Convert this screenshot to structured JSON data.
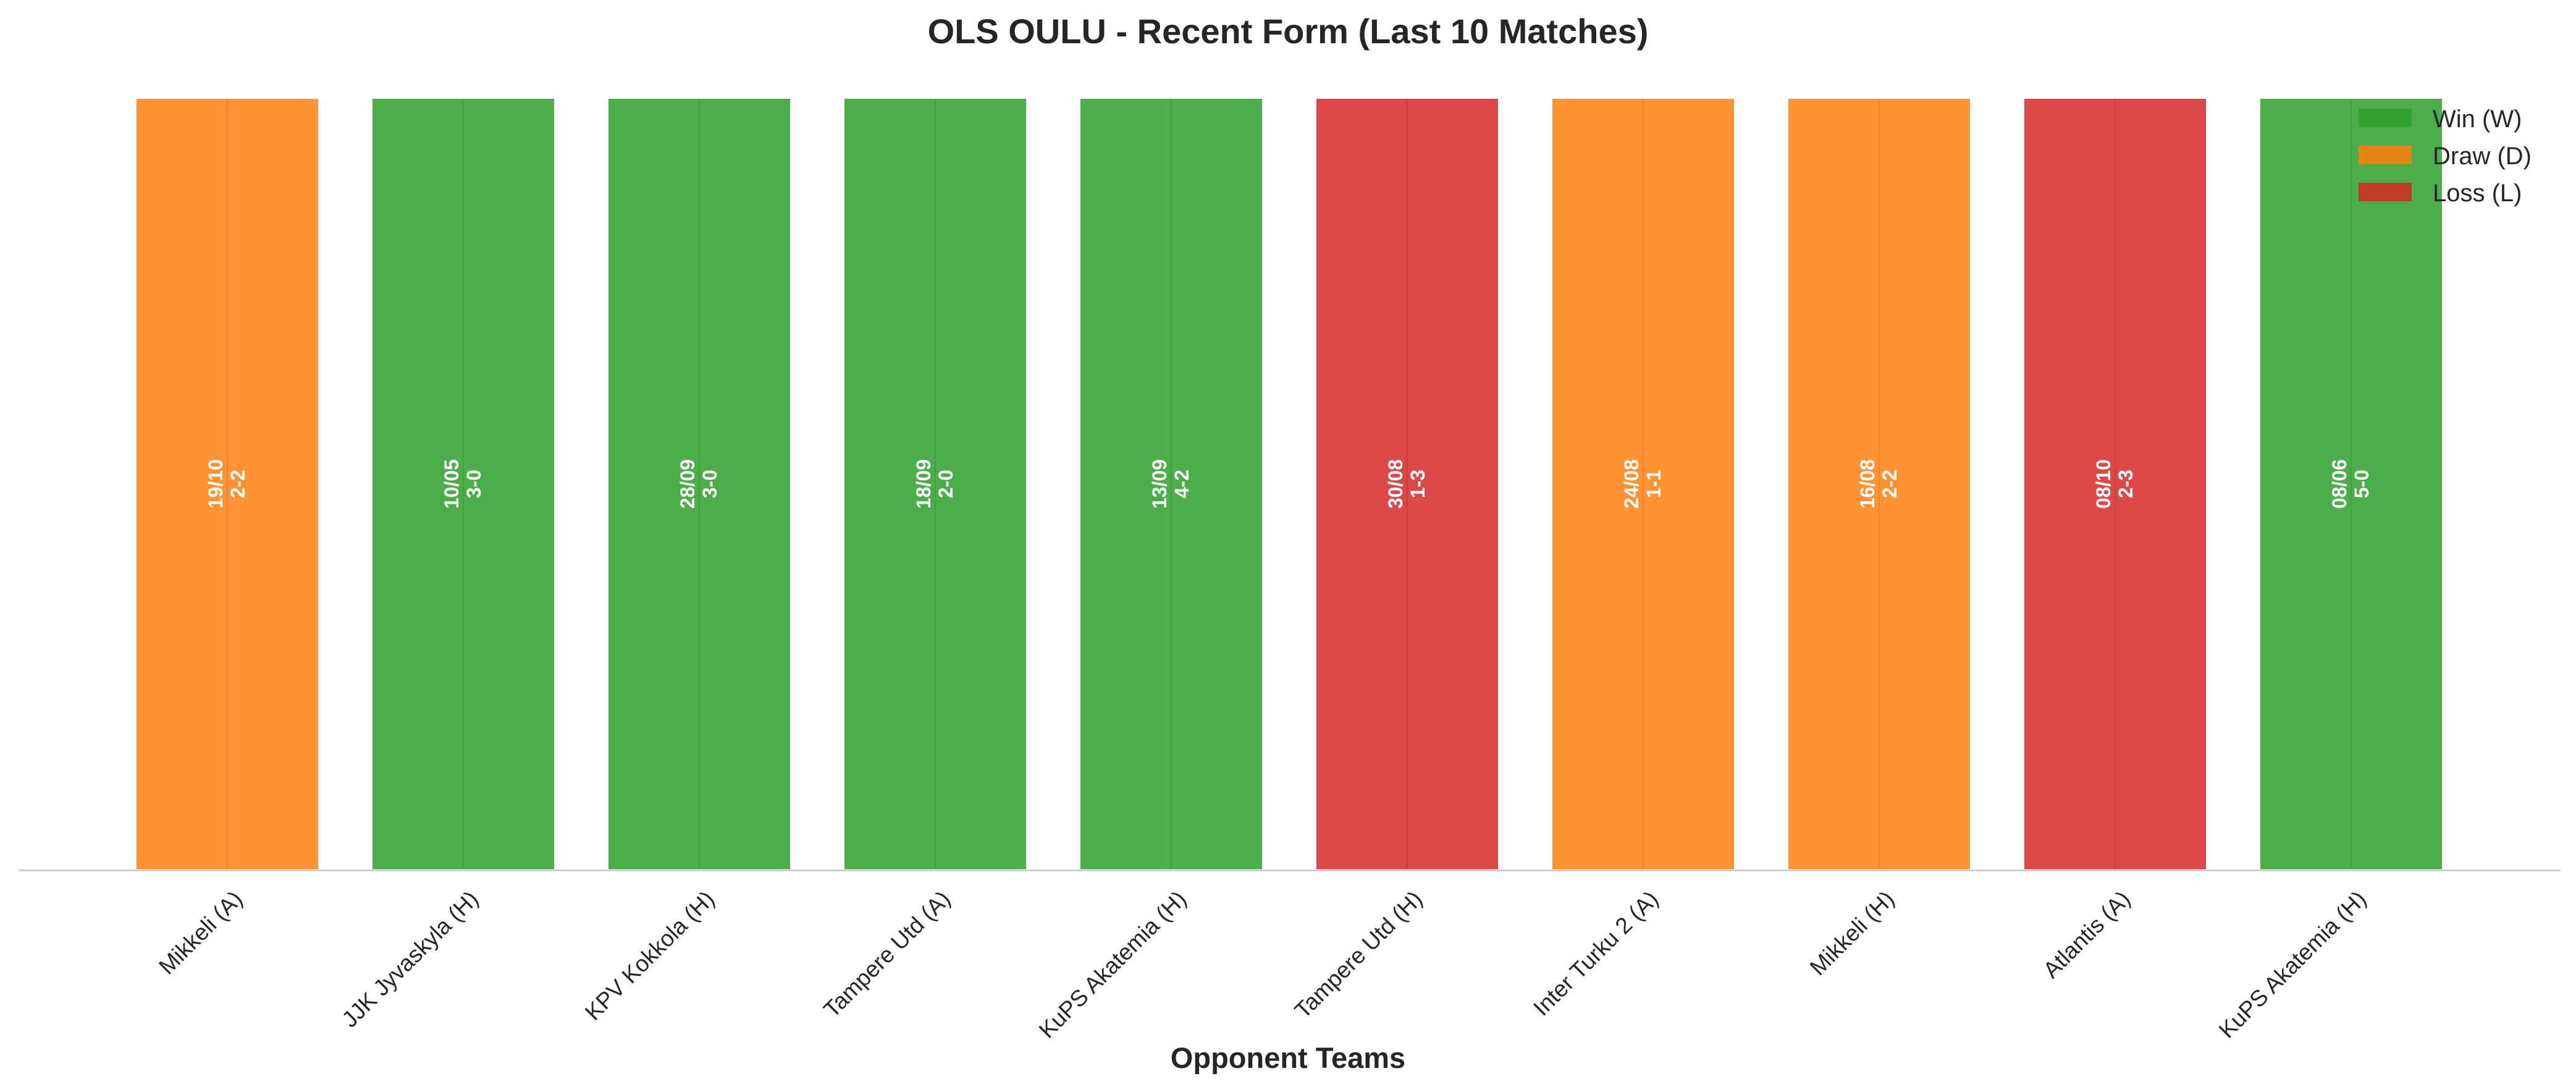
{
  "chart_data": {
    "type": "bar",
    "title": "OLS OULU - Recent Form (Last 10 Matches)",
    "xlabel": "Opponent Teams",
    "ylabel": "",
    "ylim": [
      0,
      1
    ],
    "grid": false,
    "legend_position": "top-right",
    "categories": [
      "Mikkeli (A)",
      "JJK Jyvaskyla (H)",
      "KPV Kokkola (H)",
      "Tampere Utd (A)",
      "KuPS Akatemia (H)",
      "Tampere Utd (H)",
      "Inter Turku 2 (A)",
      "Mikkeli (H)",
      "Atlantis (A)",
      "KuPS Akatemia (H)"
    ],
    "values": [
      1,
      1,
      1,
      1,
      1,
      1,
      1,
      1,
      1,
      1
    ],
    "results": [
      "D",
      "W",
      "W",
      "W",
      "W",
      "L",
      "D",
      "D",
      "L",
      "W"
    ],
    "dates": [
      "19/10",
      "10/05",
      "28/09",
      "18/09",
      "13/09",
      "30/08",
      "24/08",
      "16/08",
      "08/10",
      "08/06"
    ],
    "scores": [
      "2-2",
      "3-0",
      "3-0",
      "2-0",
      "4-2",
      "1-3",
      "1-1",
      "2-2",
      "2-3",
      "5-0"
    ],
    "legend": [
      {
        "key": "W",
        "label": "Win (W)",
        "color": "#2ca02c"
      },
      {
        "key": "D",
        "label": "Draw (D)",
        "color": "#ff7f0e"
      },
      {
        "key": "L",
        "label": "Loss (L)",
        "color": "#d62728"
      }
    ]
  }
}
